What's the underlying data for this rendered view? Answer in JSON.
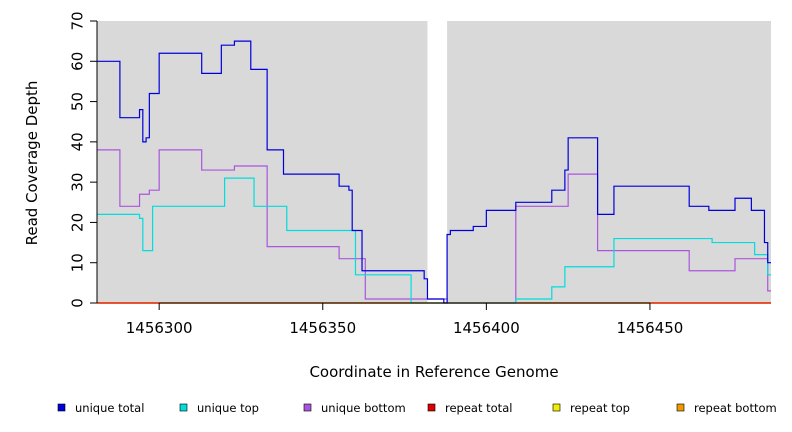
{
  "chart_data": {
    "type": "line",
    "title": "",
    "xlabel": "Coordinate in Reference Genome",
    "ylabel": "Read Coverage Depth",
    "xlim": [
      1456281,
      1456487
    ],
    "ylim": [
      0,
      70
    ],
    "x_ticks": [
      1456300,
      1456350,
      1456400,
      1456450
    ],
    "y_ticks": [
      0,
      10,
      20,
      30,
      40,
      50,
      60,
      70
    ],
    "covered_regions": [
      [
        1456281,
        1456382
      ],
      [
        1456388,
        1456487
      ]
    ],
    "legend_position": "bottom",
    "series": [
      {
        "name": "unique total",
        "color": "#0000dd",
        "steps": [
          [
            1456281,
            60
          ],
          [
            1456288,
            46
          ],
          [
            1456294,
            48
          ],
          [
            1456295,
            40
          ],
          [
            1456296,
            41
          ],
          [
            1456297,
            52
          ],
          [
            1456300,
            62
          ],
          [
            1456313,
            57
          ],
          [
            1456319,
            64
          ],
          [
            1456323,
            65
          ],
          [
            1456328,
            58
          ],
          [
            1456333,
            38
          ],
          [
            1456338,
            32
          ],
          [
            1456355,
            29
          ],
          [
            1456358,
            28
          ],
          [
            1456359,
            18
          ],
          [
            1456362,
            8
          ],
          [
            1456381,
            6
          ],
          [
            1456382,
            1
          ],
          [
            1456387,
            0
          ],
          [
            1456388,
            17
          ],
          [
            1456389,
            18
          ],
          [
            1456396,
            19
          ],
          [
            1456400,
            23
          ],
          [
            1456409,
            25
          ],
          [
            1456420,
            28
          ],
          [
            1456424,
            33
          ],
          [
            1456425,
            41
          ],
          [
            1456434,
            22
          ],
          [
            1456439,
            29
          ],
          [
            1456462,
            24
          ],
          [
            1456468,
            23
          ],
          [
            1456476,
            26
          ],
          [
            1456481,
            23
          ],
          [
            1456485,
            15
          ],
          [
            1456486,
            10
          ]
        ]
      },
      {
        "name": "unique top",
        "color": "#00dddd",
        "steps": [
          [
            1456281,
            22
          ],
          [
            1456294,
            21
          ],
          [
            1456295,
            13
          ],
          [
            1456298,
            24
          ],
          [
            1456320,
            31
          ],
          [
            1456329,
            24
          ],
          [
            1456339,
            18
          ],
          [
            1456360,
            7
          ],
          [
            1456377,
            0
          ],
          [
            1456409,
            1
          ],
          [
            1456420,
            4
          ],
          [
            1456424,
            9
          ],
          [
            1456439,
            16
          ],
          [
            1456469,
            15
          ],
          [
            1456482,
            12
          ],
          [
            1456486,
            7
          ]
        ]
      },
      {
        "name": "unique bottom",
        "color": "#aa55dd",
        "steps": [
          [
            1456281,
            38
          ],
          [
            1456288,
            24
          ],
          [
            1456294,
            27
          ],
          [
            1456297,
            28
          ],
          [
            1456300,
            38
          ],
          [
            1456313,
            33
          ],
          [
            1456323,
            34
          ],
          [
            1456333,
            14
          ],
          [
            1456355,
            11
          ],
          [
            1456363,
            1
          ],
          [
            1456382,
            1
          ],
          [
            1456388,
            0
          ],
          [
            1456409,
            24
          ],
          [
            1456425,
            32
          ],
          [
            1456434,
            13
          ],
          [
            1456462,
            8
          ],
          [
            1456476,
            11
          ],
          [
            1456486,
            3
          ]
        ]
      },
      {
        "name": "repeat total",
        "color": "#dd0000",
        "steps": [
          [
            1456281,
            0
          ]
        ]
      },
      {
        "name": "repeat top",
        "color": "#eeee00",
        "steps": [
          [
            1456281,
            0
          ]
        ]
      },
      {
        "name": "repeat bottom",
        "color": "#ee9900",
        "steps": [
          [
            1456281,
            0
          ]
        ]
      }
    ]
  }
}
